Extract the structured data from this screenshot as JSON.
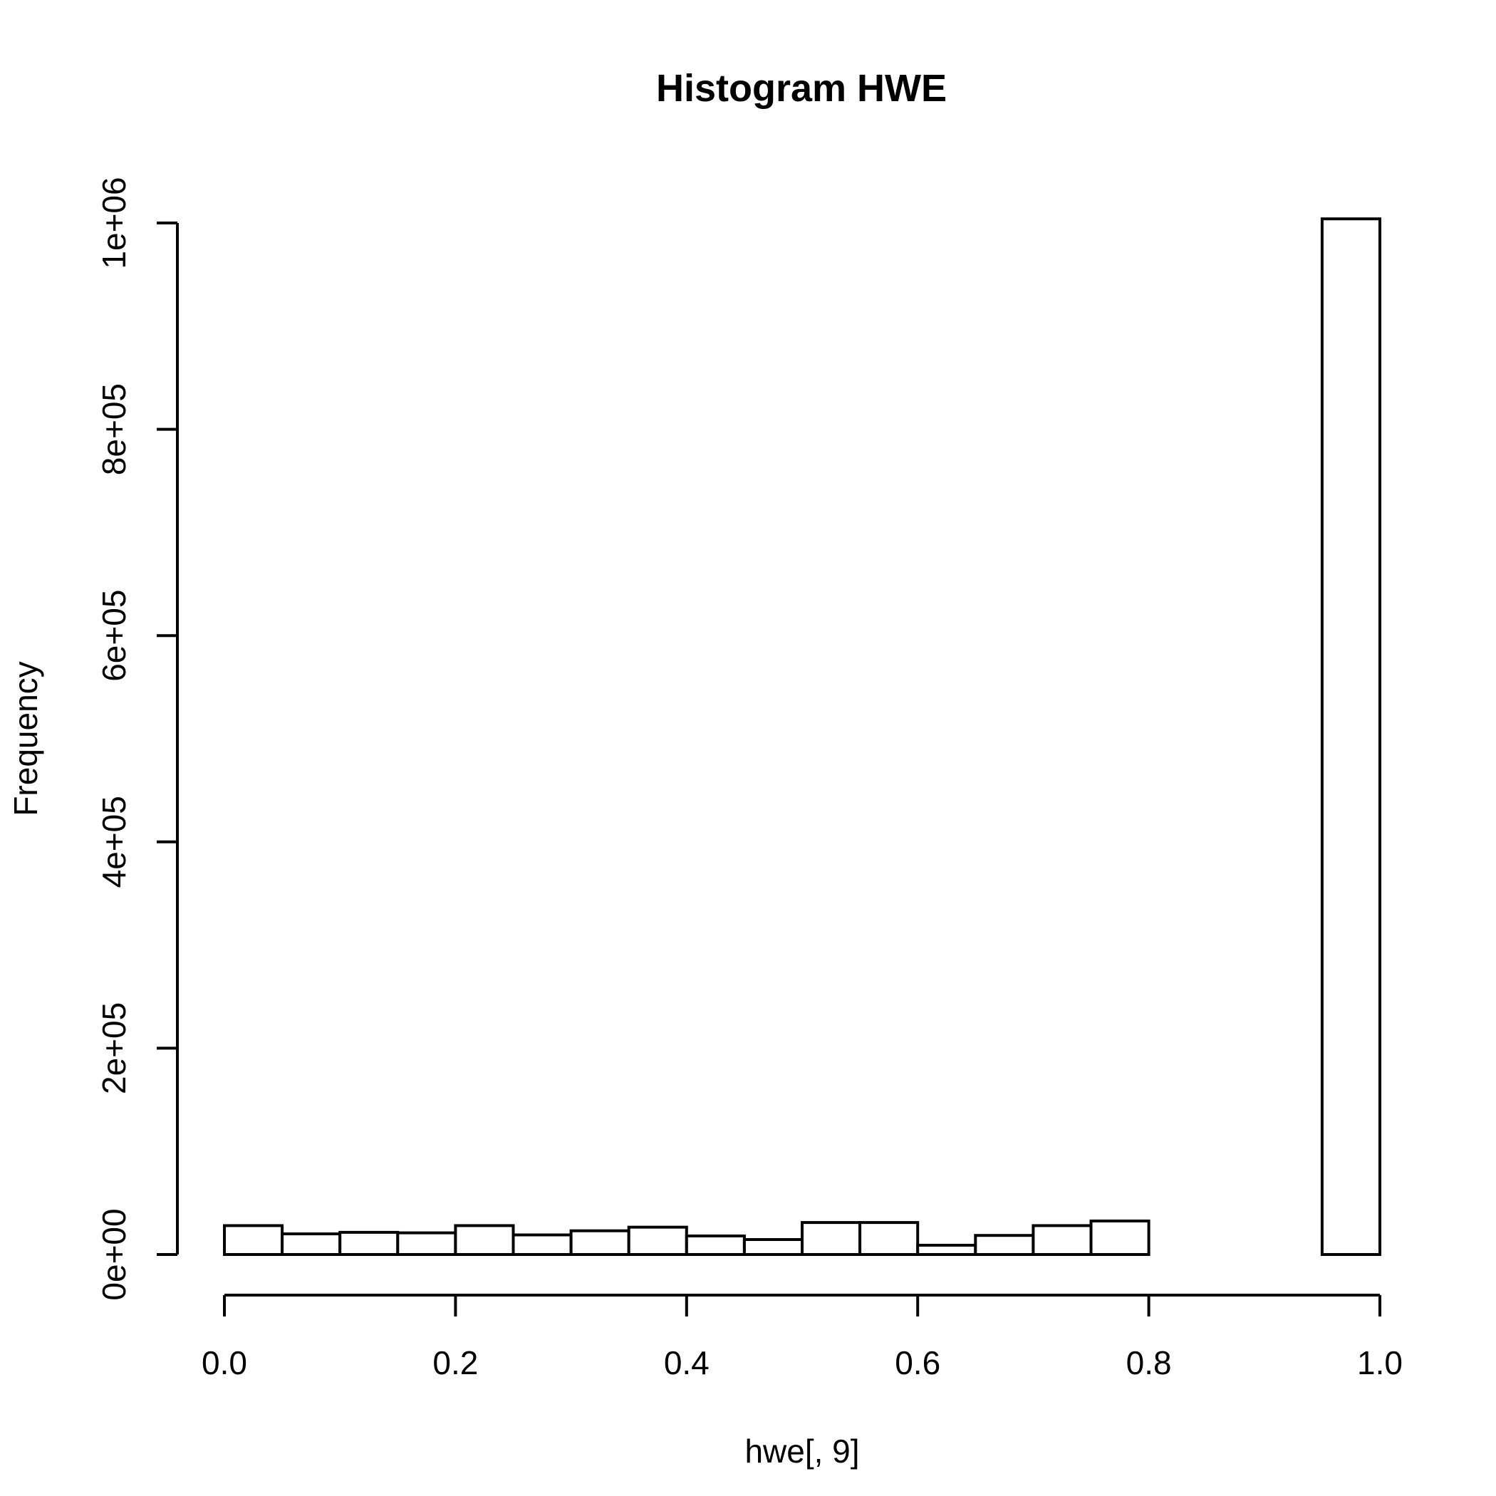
{
  "chart_data": {
    "type": "bar",
    "title": "Histogram HWE",
    "xlabel": "hwe[, 9]",
    "ylabel": "Frequency",
    "xlim": [
      0,
      1
    ],
    "ylim": [
      0,
      1000000
    ],
    "bin_width": 0.05,
    "bins": [
      {
        "start": 0.0,
        "end": 0.05,
        "count": 28000
      },
      {
        "start": 0.05,
        "end": 0.1,
        "count": 20000
      },
      {
        "start": 0.1,
        "end": 0.15,
        "count": 21500
      },
      {
        "start": 0.15,
        "end": 0.2,
        "count": 21000
      },
      {
        "start": 0.2,
        "end": 0.25,
        "count": 28000
      },
      {
        "start": 0.25,
        "end": 0.3,
        "count": 19000
      },
      {
        "start": 0.3,
        "end": 0.35,
        "count": 23000
      },
      {
        "start": 0.35,
        "end": 0.4,
        "count": 26500
      },
      {
        "start": 0.4,
        "end": 0.45,
        "count": 18000
      },
      {
        "start": 0.45,
        "end": 0.5,
        "count": 14500
      },
      {
        "start": 0.5,
        "end": 0.55,
        "count": 31000
      },
      {
        "start": 0.55,
        "end": 0.6,
        "count": 31000
      },
      {
        "start": 0.6,
        "end": 0.65,
        "count": 9000
      },
      {
        "start": 0.65,
        "end": 0.7,
        "count": 18500
      },
      {
        "start": 0.7,
        "end": 0.75,
        "count": 28000
      },
      {
        "start": 0.75,
        "end": 0.8,
        "count": 32500
      },
      {
        "start": 0.8,
        "end": 0.85,
        "count": 0
      },
      {
        "start": 0.85,
        "end": 0.9,
        "count": 0
      },
      {
        "start": 0.9,
        "end": 0.95,
        "count": 0
      },
      {
        "start": 0.95,
        "end": 1.0,
        "count": 1004000
      }
    ],
    "x_ticks": [
      {
        "value": 0.0,
        "label": "0.0"
      },
      {
        "value": 0.2,
        "label": "0.2"
      },
      {
        "value": 0.4,
        "label": "0.4"
      },
      {
        "value": 0.6,
        "label": "0.6"
      },
      {
        "value": 0.8,
        "label": "0.8"
      },
      {
        "value": 1.0,
        "label": "1.0"
      }
    ],
    "y_ticks": [
      {
        "value": 0,
        "label": "0e+00"
      },
      {
        "value": 200000,
        "label": "2e+05"
      },
      {
        "value": 400000,
        "label": "4e+05"
      },
      {
        "value": 600000,
        "label": "6e+05"
      },
      {
        "value": 800000,
        "label": "8e+05"
      },
      {
        "value": 1000000,
        "label": "1e+06"
      }
    ],
    "grid": false,
    "legend": "none"
  }
}
